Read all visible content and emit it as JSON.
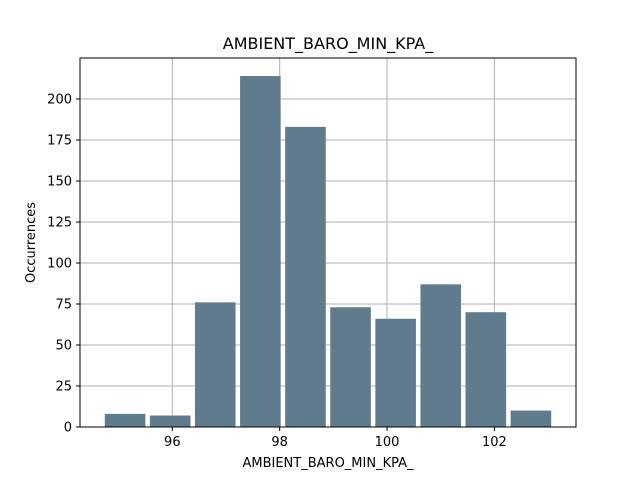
{
  "chart_data": {
    "type": "bar",
    "title": "AMBIENT_BARO_MIN_KPA_",
    "xlabel": "AMBIENT_BARO_MIN_KPA_",
    "ylabel": "Occurrences",
    "bin_edges": [
      94.7,
      95.54,
      96.38,
      97.22,
      98.06,
      98.9,
      99.74,
      100.58,
      101.42,
      102.26,
      103.1
    ],
    "values": [
      8,
      7,
      76,
      214,
      183,
      73,
      66,
      87,
      70,
      10
    ],
    "xlim": [
      94.28,
      103.52
    ],
    "ylim": [
      0,
      225
    ],
    "xticks": [
      96,
      98,
      100,
      102
    ],
    "xtick_labels": [
      "96",
      "98",
      "100",
      "102"
    ],
    "yticks": [
      0,
      25,
      50,
      75,
      100,
      125,
      150,
      175,
      200
    ],
    "ytick_labels": [
      "0",
      "25",
      "50",
      "75",
      "100",
      "125",
      "150",
      "175",
      "200"
    ],
    "bar_color": "#607b8e",
    "grid": true,
    "grid_color": "#b0b0b0",
    "legend": "none"
  }
}
